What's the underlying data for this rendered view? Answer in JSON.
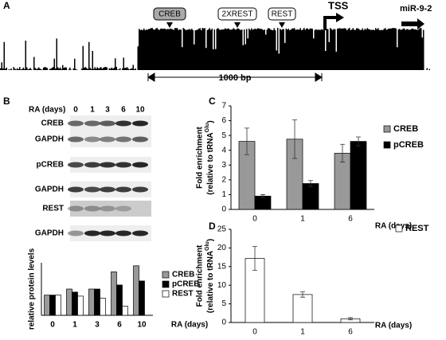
{
  "panel_labels": [
    "A",
    "B",
    "C",
    "D"
  ],
  "panel_a": {
    "boxes": [
      "CREB",
      "2XREST",
      "REST"
    ],
    "tss": "TSS",
    "mirna": "miR-9-2",
    "scale": "1000 bp"
  },
  "blot": {
    "axis_label": "RA (days)",
    "lanes": [
      "0",
      "1",
      "3",
      "6",
      "10"
    ],
    "rows": [
      "CREB",
      "GAPDH",
      "pCREB",
      "GAPDH",
      "REST",
      "GAPDH"
    ]
  },
  "chart_data": [
    {
      "type": "bar",
      "categories": [
        "0",
        "1",
        "3",
        "6",
        "10"
      ],
      "x_label": "RA (days)",
      "y_label": "relative protein levels",
      "ylim": [
        0,
        2.6
      ],
      "series": [
        {
          "name": "CREB",
          "color": "#999999",
          "values": [
            1,
            1.3,
            1.3,
            2.15,
            2.45
          ]
        },
        {
          "name": "pCREB",
          "color": "#000000",
          "values": [
            1,
            1.15,
            1.3,
            1.5,
            1.7
          ]
        },
        {
          "name": "REST",
          "color": "#ffffff",
          "values": [
            1,
            0.95,
            0.85,
            0.45,
            0
          ]
        }
      ]
    },
    {
      "type": "bar",
      "categories": [
        "0",
        "1",
        "6"
      ],
      "x_label": "RA (days)",
      "y_label": "Fold enrichment",
      "y_label_2": "(relative to tRNA",
      "y_label_sup": "Glu",
      "y_label_end": ")",
      "ylim": [
        0,
        7
      ],
      "yticks": [
        0,
        1,
        2,
        3,
        4,
        5,
        6,
        7
      ],
      "series": [
        {
          "name": "CREB",
          "color": "#999999",
          "values": [
            4.6,
            4.75,
            3.8
          ],
          "errors": [
            0.9,
            1.3,
            0.6
          ]
        },
        {
          "name": "pCREB",
          "color": "#000000",
          "values": [
            0.9,
            1.75,
            4.6
          ],
          "errors": [
            0.1,
            0.2,
            0.3
          ]
        }
      ]
    },
    {
      "type": "bar",
      "categories": [
        "0",
        "1",
        "6"
      ],
      "x_label": "RA (days)",
      "y_label": "Fold enrichment",
      "y_label_2": "(relative to tRNA",
      "y_label_sup": "Glu",
      "y_label_end": ")",
      "ylim": [
        0,
        25
      ],
      "yticks": [
        0,
        5,
        10,
        15,
        20,
        25
      ],
      "series": [
        {
          "name": "REST",
          "color": "#ffffff",
          "values": [
            17.2,
            7.5,
            1.0
          ],
          "errors": [
            3.2,
            0.7,
            0.3
          ]
        }
      ]
    }
  ]
}
